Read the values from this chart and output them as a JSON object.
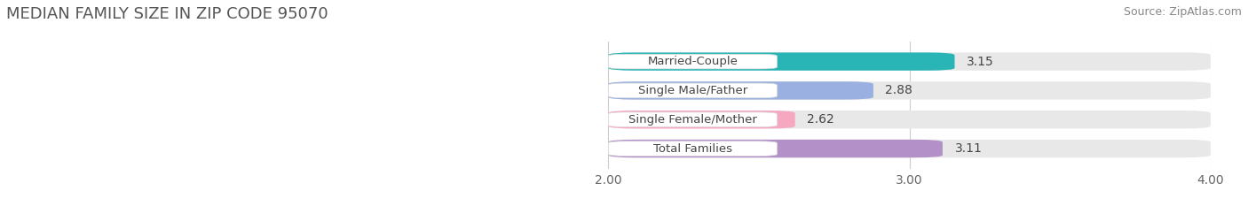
{
  "title": "MEDIAN FAMILY SIZE IN ZIP CODE 95070",
  "source": "Source: ZipAtlas.com",
  "categories": [
    "Married-Couple",
    "Single Male/Father",
    "Single Female/Mother",
    "Total Families"
  ],
  "values": [
    3.15,
    2.88,
    2.62,
    3.11
  ],
  "bar_colors": [
    "#29b5b5",
    "#9ab0e0",
    "#f5a8c0",
    "#b490c8"
  ],
  "xlim_left": 0.0,
  "xlim_right": 4.0,
  "xstart": 2.0,
  "xticks": [
    2.0,
    3.0,
    4.0
  ],
  "xtick_labels": [
    "2.00",
    "3.00",
    "4.00"
  ],
  "bar_height": 0.62,
  "background_color": "#ffffff",
  "bar_bg_color": "#e8e8e8",
  "title_fontsize": 13,
  "source_fontsize": 9,
  "tick_fontsize": 10,
  "value_fontsize": 10,
  "label_fontsize": 9.5
}
